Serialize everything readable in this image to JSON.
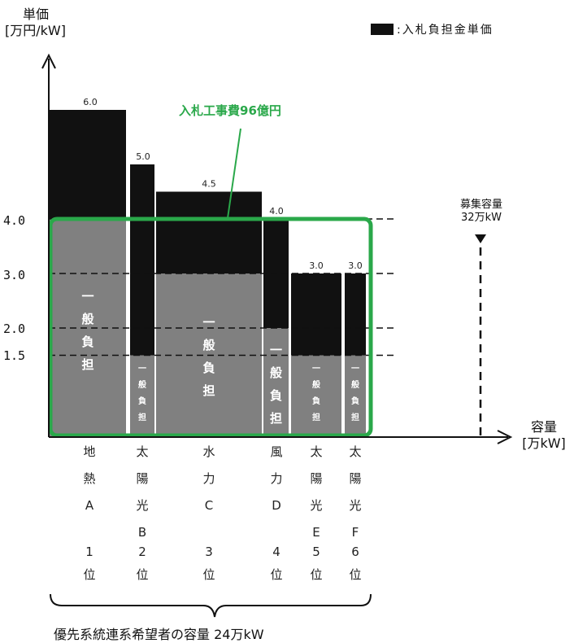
{
  "chart_data": {
    "type": "bar",
    "title": "",
    "ylabel": "単価",
    "yunit": "[万円/kW]",
    "xlabel": "容量",
    "xunit": "[万kW]",
    "y_ticks": [
      "4.0",
      "3.0",
      "2.0",
      "1.5"
    ],
    "legend": {
      "label": ":入札負担金単価",
      "color": "#111111"
    },
    "annotation": "入札工事費96億円",
    "recruitment": {
      "line1": "募集容量",
      "line2": "32万kW"
    },
    "bottom_note": "優先系統連系希望者の容量 24万kW",
    "general_burden_label": "一般負担",
    "categories": [
      "地熱A",
      "太陽光B",
      "水力C",
      "風力D",
      "太陽光E",
      "太陽光F"
    ],
    "series": [
      {
        "name": "一般負担",
        "values": [
          4.0,
          1.5,
          3.0,
          2.0,
          1.5,
          1.5
        ]
      },
      {
        "name": "入札負担金単価",
        "values": [
          2.0,
          3.5,
          1.5,
          2.0,
          1.5,
          1.5
        ]
      }
    ],
    "bars": [
      {
        "name": "地熱A",
        "total": 6.0,
        "general": 4.0,
        "total_label": "6.0",
        "chars": [
          "地",
          "熱",
          "A"
        ],
        "rank": [
          "1",
          "位"
        ]
      },
      {
        "name": "太陽光B",
        "total": 5.0,
        "general": 1.5,
        "total_label": "5.0",
        "chars": [
          "太",
          "陽",
          "光",
          "B"
        ],
        "rank": [
          "2",
          "位"
        ]
      },
      {
        "name": "水力C",
        "total": 4.5,
        "general": 3.0,
        "total_label": "4.5",
        "chars": [
          "水",
          "力",
          "C"
        ],
        "rank": [
          "3",
          "位"
        ]
      },
      {
        "name": "風力D",
        "total": 4.0,
        "general": 2.0,
        "total_label": "4.0",
        "chars": [
          "風",
          "力",
          "D"
        ],
        "rank": [
          "4",
          "位"
        ]
      },
      {
        "name": "太陽光E",
        "total": 3.0,
        "general": 1.5,
        "total_label": "3.0",
        "chars": [
          "太",
          "陽",
          "光",
          "E"
        ],
        "rank": [
          "5",
          "位"
        ]
      },
      {
        "name": "太陽光F",
        "total": 3.0,
        "general": 1.5,
        "total_label": "3.0",
        "chars": [
          "太",
          "陽",
          "光",
          "F"
        ],
        "rank": [
          "6",
          "位"
        ]
      }
    ],
    "colors": {
      "bid": "#111111",
      "general": "#808080",
      "highlight": "#2aa84a"
    }
  }
}
